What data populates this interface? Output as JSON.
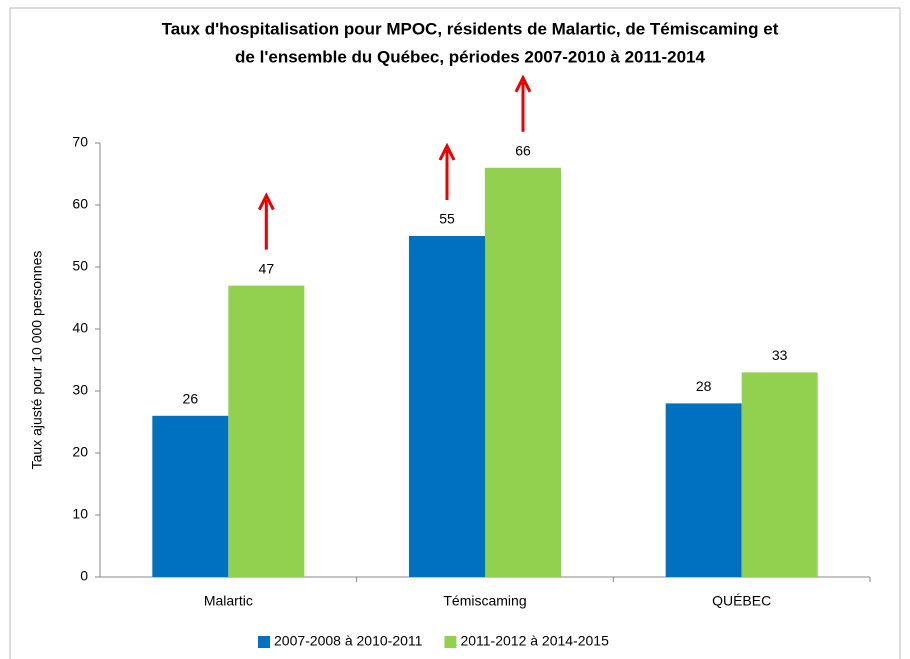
{
  "chart_data": {
    "type": "bar",
    "title": [
      "Taux d'hospitalisation pour MPOC, résidents de Malartic, de Témiscaming et",
      "de l'ensemble du Québec, périodes 2007-2010 à 2011-2014"
    ],
    "y_label": "Taux ajusté pour 10 000 personnes",
    "categories": [
      "Malartic",
      "Témiscaming",
      "QUÉBEC"
    ],
    "series": [
      {
        "name": "2007-2008 à 2010-2011",
        "color": "#0070c0",
        "values": [
          26,
          55,
          28
        ]
      },
      {
        "name": "2011-2012 à 2014-2015",
        "color": "#92d050",
        "values": [
          47,
          66,
          33
        ]
      }
    ],
    "ylim": [
      0,
      70
    ],
    "yticks": [
      0,
      10,
      20,
      30,
      40,
      50,
      60,
      70
    ],
    "grid": false,
    "legend": "bottom"
  }
}
